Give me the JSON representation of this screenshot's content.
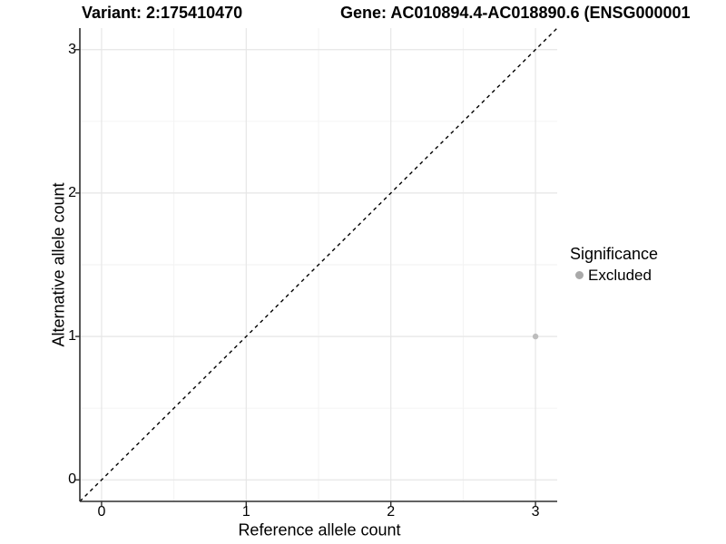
{
  "chart_data": {
    "type": "scatter",
    "title_left": "Variant: 2:175410470",
    "title_right": "Gene: AC010894.4-AC018890.6 (ENSG000001",
    "xlabel": "Reference allele count",
    "ylabel": "Alternative allele count",
    "xlim": [
      -0.15,
      3.15
    ],
    "ylim": [
      -0.15,
      3.15
    ],
    "xticks": [
      0,
      1,
      2,
      3
    ],
    "yticks": [
      0,
      1,
      2,
      3
    ],
    "x_minor_ticks": [
      0.5,
      1.5,
      2.5
    ],
    "y_minor_ticks": [
      0.5,
      1.5,
      2.5
    ],
    "grid": "major+minor",
    "series": [
      {
        "name": "Excluded",
        "color": "#bdbdbd",
        "points": [
          {
            "x": 3,
            "y": 1
          }
        ]
      }
    ],
    "reference_line": {
      "slope": 1,
      "intercept": 0,
      "style": "dashed",
      "color": "#000000"
    },
    "legend": {
      "title": "Significance",
      "position": "right",
      "entries": [
        {
          "label": "Excluded",
          "color": "#a9a9a9"
        }
      ]
    }
  },
  "colors": {
    "background": "#ffffff",
    "grid_major": "#e6e6e6",
    "grid_minor": "#f2f2f2",
    "axis": "#2f2f2f",
    "point": "#bdbdbd",
    "text": "#000000"
  }
}
